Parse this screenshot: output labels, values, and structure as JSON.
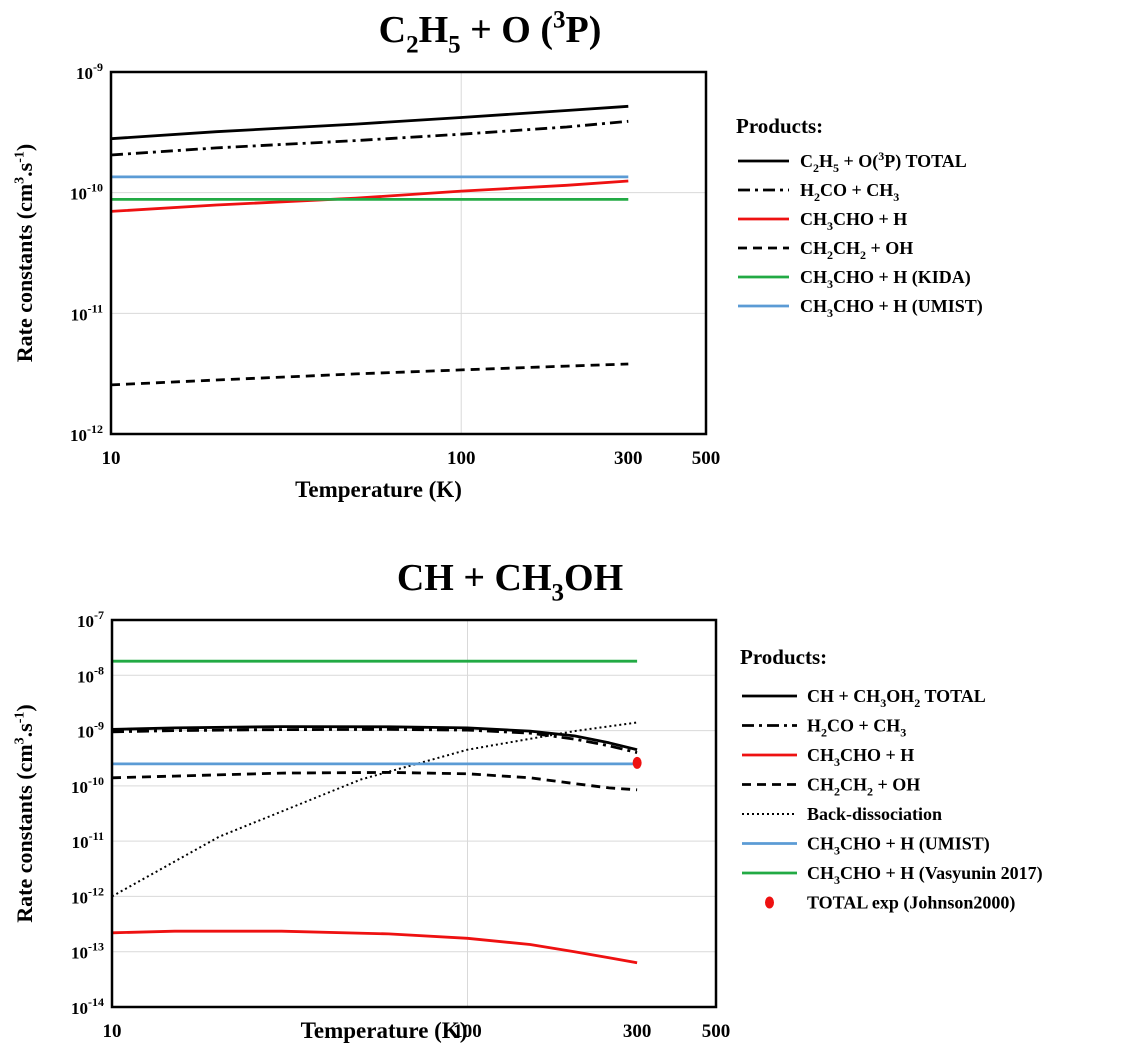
{
  "chart_data": [
    {
      "type": "line",
      "title": {
        "parts": [
          {
            "t": "C"
          },
          {
            "t": "2",
            "sub": true
          },
          {
            "t": "H"
          },
          {
            "t": "5",
            "sub": true
          },
          {
            "t": " + O ("
          },
          {
            "t": "3",
            "sup": true
          },
          {
            "t": "P)"
          }
        ]
      },
      "xlabel": "Temperature (K)",
      "ylabel": {
        "parts": [
          {
            "t": "Rate constants (cm"
          },
          {
            "t": "3",
            "sup": true
          },
          {
            "t": ".s"
          },
          {
            "t": "-1",
            "sup": true
          },
          {
            "t": ")"
          }
        ]
      },
      "x_scale": "log",
      "y_scale": "log",
      "xlim": [
        10,
        500
      ],
      "ylim": [
        1e-12,
        1e-09
      ],
      "x_ticks": [
        10,
        100,
        300,
        500
      ],
      "x_tick_labels": [
        "10",
        "100",
        "300",
        "500"
      ],
      "y_ticks": [
        {
          "m": "10",
          "e": "-12",
          "v": 1e-12
        },
        {
          "m": "10",
          "e": "-11",
          "v": 1e-11
        },
        {
          "m": "10",
          "e": "-10",
          "v": 1e-10
        },
        {
          "m": "10",
          "e": "-9",
          "v": 1e-09
        }
      ],
      "grid": true,
      "legend_title": "Products:",
      "legend_position": "right",
      "series": [
        {
          "name": {
            "parts": [
              {
                "t": "C"
              },
              {
                "t": "2",
                "sub": true
              },
              {
                "t": "H"
              },
              {
                "t": "5",
                "sub": true
              },
              {
                "t": " + O("
              },
              {
                "t": "3",
                "sup": true
              },
              {
                "t": "P) TOTAL"
              }
            ]
          },
          "color": "#000000",
          "dash": "solid",
          "x": [
            10,
            20,
            50,
            100,
            200,
            300
          ],
          "y": [
            2.8e-10,
            3.2e-10,
            3.7e-10,
            4.2e-10,
            4.8e-10,
            5.2e-10
          ]
        },
        {
          "name": {
            "parts": [
              {
                "t": "H"
              },
              {
                "t": "2",
                "sub": true
              },
              {
                "t": "CO + CH"
              },
              {
                "t": "3",
                "sub": true
              }
            ]
          },
          "color": "#000000",
          "dash": "dashdot",
          "x": [
            10,
            20,
            50,
            100,
            200,
            300
          ],
          "y": [
            2.05e-10,
            2.35e-10,
            2.7e-10,
            3.05e-10,
            3.5e-10,
            3.9e-10
          ]
        },
        {
          "name": {
            "parts": [
              {
                "t": "CH"
              },
              {
                "t": "3",
                "sub": true
              },
              {
                "t": "CHO + H"
              }
            ]
          },
          "color": "#ee1111",
          "dash": "solid",
          "x": [
            10,
            20,
            50,
            100,
            200,
            300
          ],
          "y": [
            7e-11,
            7.9e-11,
            9e-11,
            1.03e-10,
            1.15e-10,
            1.25e-10
          ]
        },
        {
          "name": {
            "parts": [
              {
                "t": "CH"
              },
              {
                "t": "2",
                "sub": true
              },
              {
                "t": "CH"
              },
              {
                "t": "2",
                "sub": true
              },
              {
                "t": " + OH"
              }
            ]
          },
          "color": "#000000",
          "dash": "dashed",
          "x": [
            10,
            20,
            50,
            100,
            200,
            300
          ],
          "y": [
            2.55e-12,
            2.8e-12,
            3.15e-12,
            3.4e-12,
            3.65e-12,
            3.8e-12
          ]
        },
        {
          "name": {
            "parts": [
              {
                "t": "CH"
              },
              {
                "t": "3",
                "sub": true
              },
              {
                "t": "CHO + H  (KIDA)"
              }
            ]
          },
          "color": "#22aa44",
          "dash": "solid",
          "x": [
            10,
            300
          ],
          "y": [
            8.8e-11,
            8.8e-11
          ]
        },
        {
          "name": {
            "parts": [
              {
                "t": "CH"
              },
              {
                "t": "3",
                "sub": true
              },
              {
                "t": "CHO + H  (UMIST)"
              }
            ]
          },
          "color": "#5b9bd5",
          "dash": "solid",
          "x": [
            10,
            300
          ],
          "y": [
            1.35e-10,
            1.35e-10
          ]
        }
      ]
    },
    {
      "type": "line",
      "title": {
        "parts": [
          {
            "t": "CH + CH"
          },
          {
            "t": "3",
            "sub": true
          },
          {
            "t": "OH"
          }
        ]
      },
      "xlabel": "Temperature (K)",
      "ylabel": {
        "parts": [
          {
            "t": "Rate constants (cm"
          },
          {
            "t": "3",
            "sup": true
          },
          {
            "t": ".s"
          },
          {
            "t": "-1",
            "sup": true
          },
          {
            "t": ")"
          }
        ]
      },
      "x_scale": "log",
      "y_scale": "log",
      "xlim": [
        10,
        500
      ],
      "ylim": [
        1e-14,
        1e-07
      ],
      "x_ticks": [
        10,
        100,
        300,
        500
      ],
      "x_tick_labels": [
        "10",
        "100",
        "300",
        "500"
      ],
      "y_ticks": [
        {
          "m": "10",
          "e": "-14",
          "v": 1e-14
        },
        {
          "m": "10",
          "e": "-13",
          "v": 1e-13
        },
        {
          "m": "10",
          "e": "-12",
          "v": 1e-12
        },
        {
          "m": "10",
          "e": "-11",
          "v": 1e-11
        },
        {
          "m": "10",
          "e": "-10",
          "v": 1e-10
        },
        {
          "m": "10",
          "e": "-9",
          "v": 1e-09
        },
        {
          "m": "10",
          "e": "-8",
          "v": 1e-08
        },
        {
          "m": "10",
          "e": "-7",
          "v": 1e-07
        }
      ],
      "grid": true,
      "legend_title": "Products:",
      "legend_position": "right",
      "series": [
        {
          "name": {
            "parts": [
              {
                "t": "CH + CH"
              },
              {
                "t": "3",
                "sub": true
              },
              {
                "t": "OH"
              },
              {
                "t": "2",
                "sub": true
              },
              {
                "t": " TOTAL"
              }
            ]
          },
          "color": "#000000",
          "dash": "solid",
          "x": [
            10,
            15,
            30,
            60,
            100,
            150,
            200,
            250,
            300
          ],
          "y": [
            1.05e-09,
            1.12e-09,
            1.18e-09,
            1.17e-09,
            1.12e-09,
            9.8e-10,
            8e-10,
            6e-10,
            4.5e-10
          ]
        },
        {
          "name": {
            "parts": [
              {
                "t": "H"
              },
              {
                "t": "2",
                "sub": true
              },
              {
                "t": "CO + CH"
              },
              {
                "t": "3",
                "sub": true
              }
            ]
          },
          "color": "#000000",
          "dash": "dashdot",
          "x": [
            10,
            15,
            30,
            60,
            100,
            150,
            200,
            250,
            300
          ],
          "y": [
            9.5e-10,
            1e-09,
            1.04e-09,
            1.05e-09,
            1.02e-09,
            9e-10,
            7e-10,
            5.3e-10,
            4e-10
          ]
        },
        {
          "name": {
            "parts": [
              {
                "t": "CH"
              },
              {
                "t": "3",
                "sub": true
              },
              {
                "t": "CHO + H"
              }
            ]
          },
          "color": "#ee1111",
          "dash": "solid",
          "x": [
            10,
            15,
            30,
            60,
            100,
            150,
            200,
            250,
            300
          ],
          "y": [
            2.2e-13,
            2.35e-13,
            2.35e-13,
            2.1e-13,
            1.75e-13,
            1.35e-13,
            1e-13,
            7.8e-14,
            6.3e-14
          ]
        },
        {
          "name": {
            "parts": [
              {
                "t": "CH"
              },
              {
                "t": "2",
                "sub": true
              },
              {
                "t": "CH"
              },
              {
                "t": "2",
                "sub": true
              },
              {
                "t": " + OH"
              }
            ]
          },
          "color": "#000000",
          "dash": "dashed",
          "x": [
            10,
            15,
            30,
            60,
            100,
            150,
            200,
            250,
            300
          ],
          "y": [
            1.4e-10,
            1.5e-10,
            1.7e-10,
            1.75e-10,
            1.65e-10,
            1.4e-10,
            1.1e-10,
            9.2e-11,
            8.5e-11
          ]
        },
        {
          "name": {
            "parts": [
              {
                "t": "Back-dissociation"
              }
            ]
          },
          "color": "#000000",
          "dash": "dotted",
          "x": [
            10,
            20,
            50,
            100,
            200,
            300
          ],
          "y": [
            1e-12,
            1.2e-11,
            1.3e-10,
            4.5e-10,
            9.8e-10,
            1.4e-09
          ]
        },
        {
          "name": {
            "parts": [
              {
                "t": "CH"
              },
              {
                "t": "3",
                "sub": true
              },
              {
                "t": "CHO + H  (UMIST)"
              }
            ]
          },
          "color": "#5b9bd5",
          "dash": "solid",
          "x": [
            10,
            300
          ],
          "y": [
            2.5e-10,
            2.5e-10
          ]
        },
        {
          "name": {
            "parts": [
              {
                "t": "CH"
              },
              {
                "t": "3",
                "sub": true
              },
              {
                "t": "CHO + H (Vasyunin 2017)"
              }
            ]
          },
          "color": "#22aa44",
          "dash": "solid",
          "x": [
            10,
            300
          ],
          "y": [
            1.8e-08,
            1.8e-08
          ]
        },
        {
          "name": {
            "parts": [
              {
                "t": "TOTAL exp (Johnson2000)"
              }
            ]
          },
          "color": "#ee1111",
          "dash": "marker",
          "x": [
            300
          ],
          "y": [
            2.6e-10
          ]
        }
      ]
    }
  ]
}
